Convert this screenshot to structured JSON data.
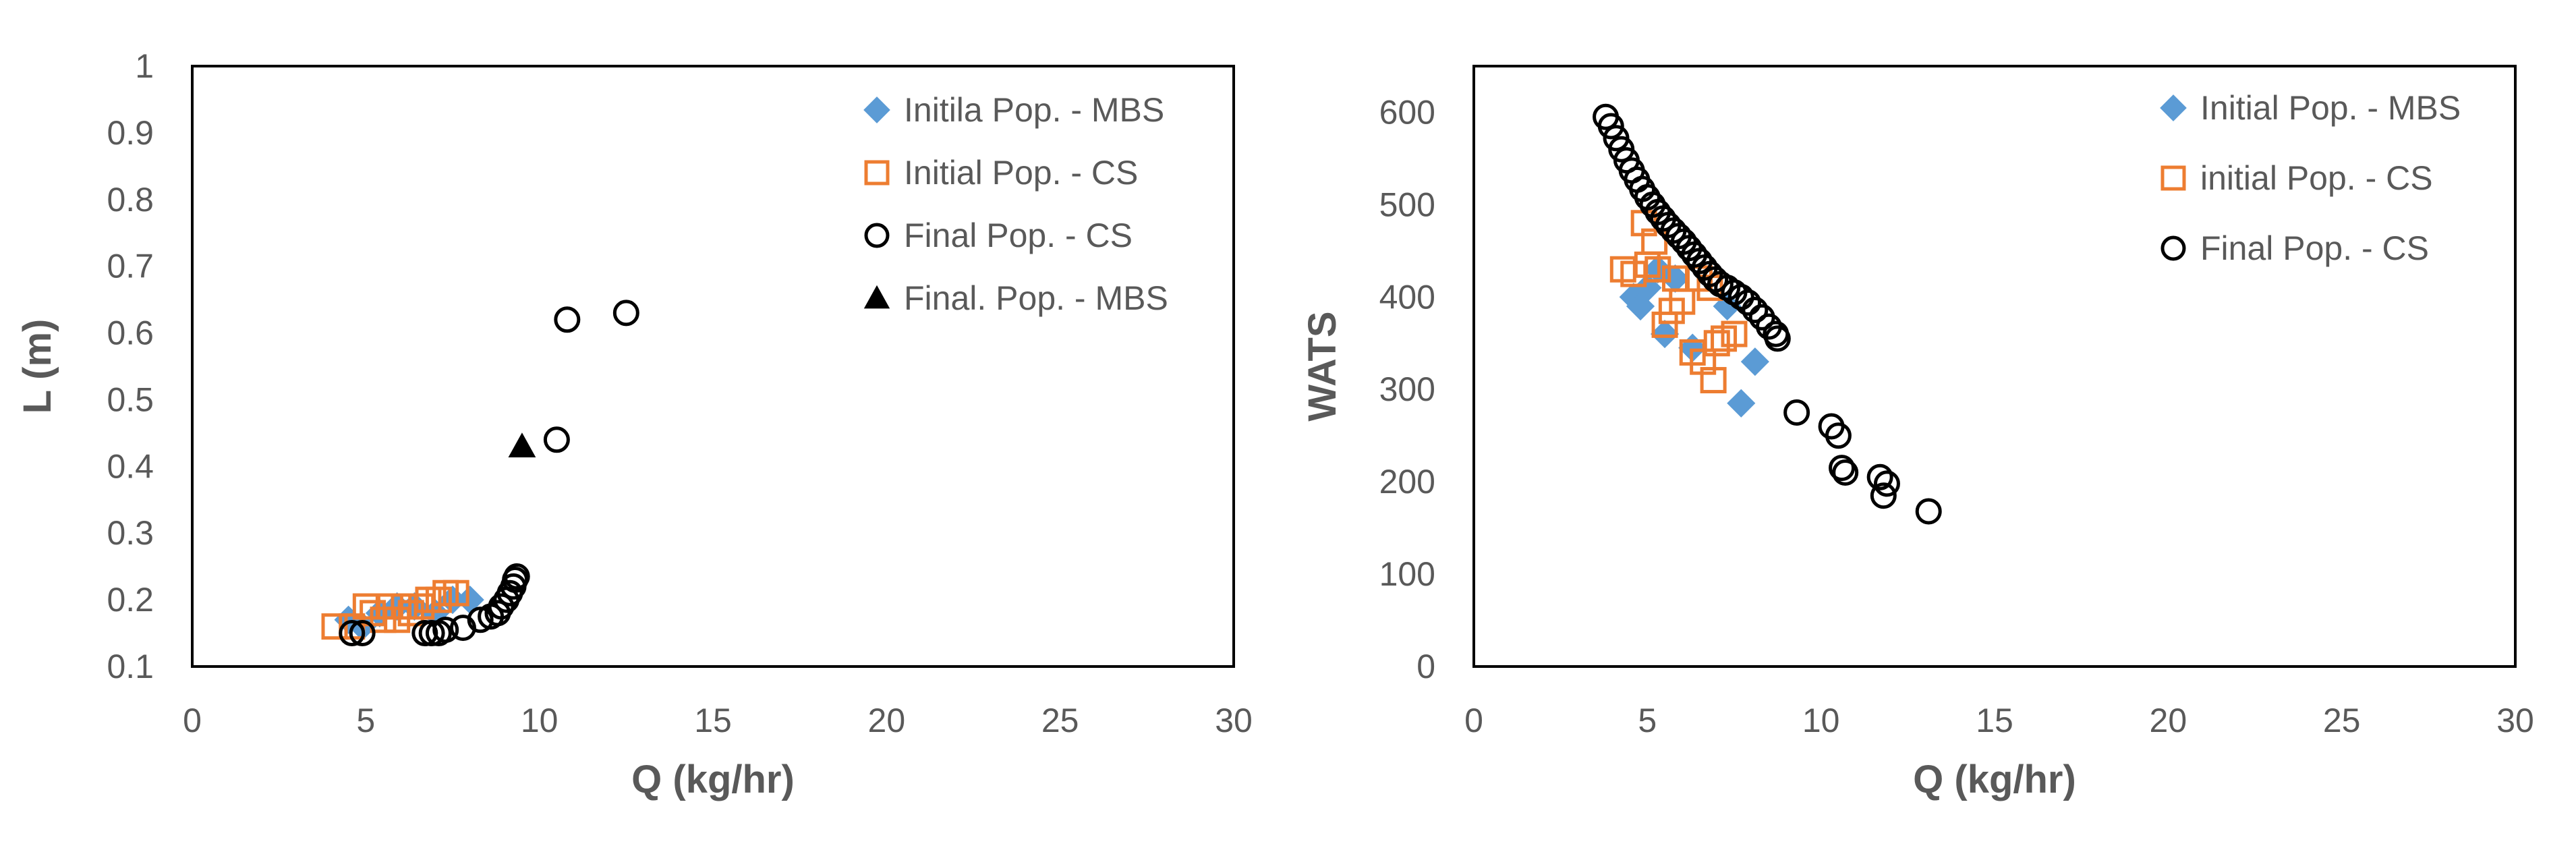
{
  "chart_data": [
    {
      "type": "scatter",
      "title": "",
      "xlabel": "Q (kg/hr)",
      "ylabel": "L (m)",
      "xlim": [
        0,
        30
      ],
      "ylim": [
        0.1,
        1
      ],
      "x_ticks": [
        0,
        5,
        10,
        15,
        20,
        25,
        30
      ],
      "y_ticks": [
        0.1,
        0.2,
        0.3,
        0.4,
        0.5,
        0.6,
        0.7,
        0.8,
        0.9,
        1
      ],
      "x_tick_labels": [
        "0",
        "5",
        "10",
        "15",
        "20",
        "25",
        "30"
      ],
      "y_tick_labels": [
        "0.1",
        "0.2",
        "0.3",
        "0.4",
        "0.5",
        "0.6",
        "0.7",
        "0.8",
        "0.9",
        "1"
      ],
      "grid": false,
      "legend_position": "top-right",
      "series": [
        {
          "name": "Initila Pop. - MBS",
          "marker": "diamond",
          "color": "#5B9BD5",
          "points": [
            [
              4.5,
              0.17
            ],
            [
              4.9,
              0.16
            ],
            [
              5.4,
              0.18
            ],
            [
              5.9,
              0.19
            ],
            [
              6.4,
              0.19
            ],
            [
              7.0,
              0.18
            ],
            [
              7.5,
              0.2
            ],
            [
              8.0,
              0.2
            ]
          ]
        },
        {
          "name": "Initial Pop. - CS",
          "marker": "square-open",
          "color": "#ED7D31",
          "points": [
            [
              4.1,
              0.16
            ],
            [
              4.6,
              0.16
            ],
            [
              5.0,
              0.19
            ],
            [
              5.2,
              0.18
            ],
            [
              5.5,
              0.17
            ],
            [
              5.7,
              0.19
            ],
            [
              5.9,
              0.17
            ],
            [
              6.1,
              0.19
            ],
            [
              6.3,
              0.18
            ],
            [
              6.6,
              0.19
            ],
            [
              6.8,
              0.2
            ],
            [
              7.1,
              0.2
            ],
            [
              7.3,
              0.21
            ],
            [
              7.6,
              0.21
            ]
          ]
        },
        {
          "name": "Final Pop. - CS",
          "marker": "circle-open",
          "color": "#000000",
          "points": [
            [
              4.6,
              0.15
            ],
            [
              4.9,
              0.15
            ],
            [
              6.7,
              0.15
            ],
            [
              6.9,
              0.15
            ],
            [
              7.1,
              0.15
            ],
            [
              7.3,
              0.155
            ],
            [
              7.8,
              0.158
            ],
            [
              8.3,
              0.17
            ],
            [
              8.6,
              0.175
            ],
            [
              8.8,
              0.18
            ],
            [
              8.9,
              0.19
            ],
            [
              9.05,
              0.2
            ],
            [
              9.15,
              0.21
            ],
            [
              9.25,
              0.22
            ],
            [
              9.3,
              0.23
            ],
            [
              9.35,
              0.235
            ],
            [
              10.5,
              0.44
            ],
            [
              10.8,
              0.62
            ],
            [
              12.5,
              0.63
            ]
          ]
        },
        {
          "name": "Final. Pop. - MBS",
          "marker": "triangle",
          "color": "#000000",
          "points": [
            [
              9.5,
              0.43
            ]
          ]
        }
      ]
    },
    {
      "type": "scatter",
      "title": "",
      "xlabel": "Q (kg/hr)",
      "ylabel": "WATS",
      "xlim": [
        0,
        30
      ],
      "ylim": [
        0,
        650
      ],
      "x_ticks": [
        0,
        5,
        10,
        15,
        20,
        25,
        30
      ],
      "y_ticks": [
        0,
        100,
        200,
        300,
        400,
        500,
        600
      ],
      "x_tick_labels": [
        "0",
        "5",
        "10",
        "15",
        "20",
        "25",
        "30"
      ],
      "y_tick_labels": [
        "0",
        "100",
        "200",
        "300",
        "400",
        "500",
        "600"
      ],
      "grid": false,
      "legend_position": "top-right",
      "series": [
        {
          "name": "Initial Pop. - MBS",
          "marker": "diamond",
          "color": "#5B9BD5",
          "points": [
            [
              4.6,
              400
            ],
            [
              4.8,
              390
            ],
            [
              5.0,
              410
            ],
            [
              5.3,
              430
            ],
            [
              5.5,
              360
            ],
            [
              5.8,
              420
            ],
            [
              6.3,
              345
            ],
            [
              7.3,
              390
            ],
            [
              7.7,
              285
            ],
            [
              8.1,
              330
            ]
          ]
        },
        {
          "name": "initial Pop. - CS",
          "marker": "square-open",
          "color": "#ED7D31",
          "points": [
            [
              4.3,
              430
            ],
            [
              4.6,
              425
            ],
            [
              4.9,
              480
            ],
            [
              5.0,
              435
            ],
            [
              5.2,
              460
            ],
            [
              5.3,
              430
            ],
            [
              5.5,
              370
            ],
            [
              5.7,
              385
            ],
            [
              5.8,
              420
            ],
            [
              6.0,
              395
            ],
            [
              6.3,
              340
            ],
            [
              6.5,
              420
            ],
            [
              6.6,
              330
            ],
            [
              6.8,
              410
            ],
            [
              6.9,
              310
            ],
            [
              7.0,
              350
            ],
            [
              7.2,
              355
            ],
            [
              7.5,
              360
            ]
          ]
        },
        {
          "name": "Final Pop. - CS",
          "marker": "circle-open",
          "color": "#000000",
          "points": [
            [
              3.8,
              595
            ],
            [
              3.95,
              585
            ],
            [
              4.1,
              572
            ],
            [
              4.25,
              560
            ],
            [
              4.4,
              548
            ],
            [
              4.55,
              537
            ],
            [
              4.7,
              527
            ],
            [
              4.85,
              517
            ],
            [
              5.0,
              508
            ],
            [
              5.15,
              500
            ],
            [
              5.3,
              492
            ],
            [
              5.45,
              485
            ],
            [
              5.6,
              478
            ],
            [
              5.75,
              472
            ],
            [
              5.9,
              466
            ],
            [
              6.05,
              460
            ],
            [
              6.2,
              453
            ],
            [
              6.35,
              446
            ],
            [
              6.5,
              439
            ],
            [
              6.65,
              432
            ],
            [
              6.8,
              425
            ],
            [
              6.95,
              419
            ],
            [
              7.1,
              414
            ],
            [
              7.3,
              410
            ],
            [
              7.5,
              405
            ],
            [
              7.7,
              400
            ],
            [
              7.9,
              394
            ],
            [
              8.1,
              386
            ],
            [
              8.3,
              378
            ],
            [
              8.5,
              368
            ],
            [
              8.7,
              360
            ],
            [
              8.75,
              355
            ],
            [
              9.3,
              275
            ],
            [
              10.3,
              260
            ],
            [
              10.5,
              250
            ],
            [
              10.6,
              215
            ],
            [
              10.7,
              210
            ],
            [
              11.7,
              205
            ],
            [
              11.8,
              185
            ],
            [
              11.9,
              198
            ],
            [
              13.1,
              168
            ]
          ]
        }
      ]
    }
  ]
}
